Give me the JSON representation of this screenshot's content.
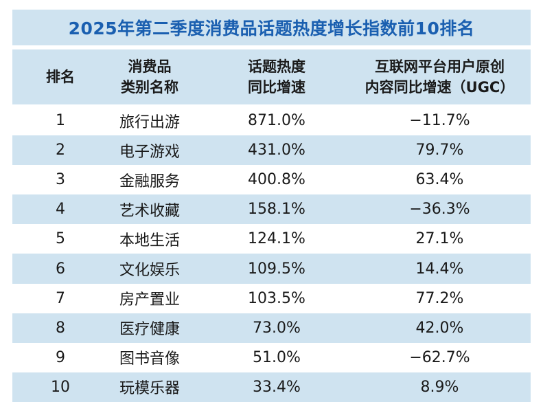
{
  "title": "2025年第二季度消费品话题热度增长指数前10排名",
  "headers": {
    "rank": "排名",
    "category_line1": "消费品",
    "category_line2": "类别名称",
    "heat_line1": "话题热度",
    "heat_line2": "同比增速",
    "ugc_line1": "互联网平台用户原创",
    "ugc_line2": "内容同比增速（UGC）"
  },
  "rows": [
    {
      "rank": "1",
      "category": "旅行出游",
      "heat": "871.0%",
      "ugc": "−11.7%"
    },
    {
      "rank": "2",
      "category": "电子游戏",
      "heat": "431.0%",
      "ugc": "79.7%"
    },
    {
      "rank": "3",
      "category": "金融服务",
      "heat": "400.8%",
      "ugc": "63.4%"
    },
    {
      "rank": "4",
      "category": "艺术收藏",
      "heat": "158.1%",
      "ugc": "−36.3%"
    },
    {
      "rank": "5",
      "category": "本地生活",
      "heat": "124.1%",
      "ugc": "27.1%"
    },
    {
      "rank": "6",
      "category": "文化娱乐",
      "heat": "109.5%",
      "ugc": "14.4%"
    },
    {
      "rank": "7",
      "category": "房产置业",
      "heat": "103.5%",
      "ugc": "77.2%"
    },
    {
      "rank": "8",
      "category": "医疗健康",
      "heat": "73.0%",
      "ugc": "42.0%"
    },
    {
      "rank": "9",
      "category": "图书音像",
      "heat": "51.0%",
      "ugc": "−62.7%"
    },
    {
      "rank": "10",
      "category": "玩模乐器",
      "heat": "33.4%",
      "ugc": "8.9%"
    }
  ],
  "colors": {
    "band": "#cfe3f0",
    "title_text": "#1a5fb0",
    "body_text": "#1a1a1a"
  }
}
